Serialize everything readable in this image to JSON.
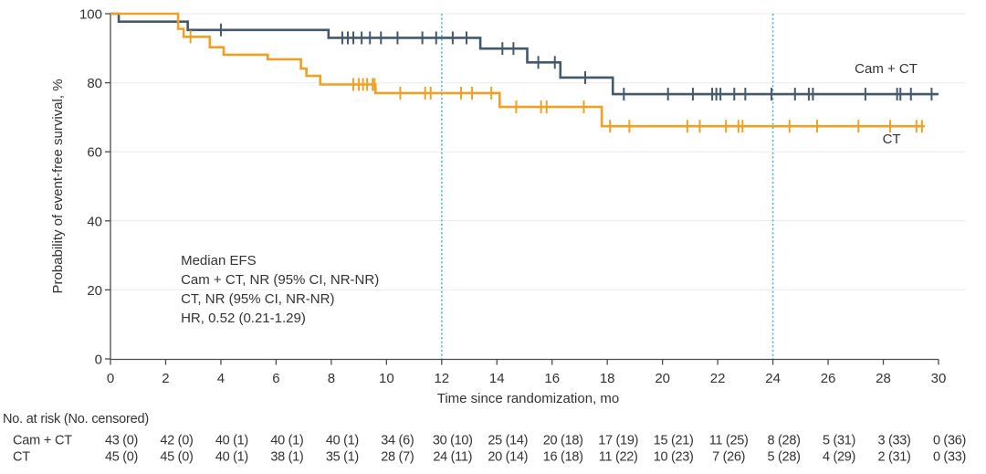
{
  "figure": {
    "background": "#ffffff",
    "text_color": "#333333",
    "axis_color": "#4c4c4c",
    "gridline_color": "#ebebeb"
  },
  "chart_data": {
    "type": "line",
    "subtype": "kaplan_meier_step",
    "title": "",
    "xlabel": "Time since randomization, mo",
    "ylabel": "Probability of event-free survival, %",
    "xlim": [
      0,
      30
    ],
    "ylim": [
      0,
      100
    ],
    "xticks": [
      0,
      2,
      4,
      6,
      8,
      10,
      12,
      14,
      16,
      18,
      20,
      22,
      24,
      26,
      28,
      30
    ],
    "yticks": [
      0,
      20,
      40,
      60,
      80,
      100
    ],
    "grid": "horizontal",
    "legend_position": "inline-right",
    "reference_lines": {
      "x_values": [
        12,
        24
      ],
      "style": "dotted",
      "color": "#3fb8e8"
    },
    "annotation": {
      "at_xy": [
        2.55,
        27.2
      ],
      "line_height_px": 21,
      "lines": [
        "Median EFS",
        "Cam + CT, NR (95% CI, NR-NR)",
        "CT, NR (95% CI, NR-NR)",
        "HR, 0.52 (0.21-1.29)"
      ]
    },
    "series": [
      {
        "name": "Cam + CT",
        "color": "#44596b",
        "label_at_xy": [
          28.1,
          82.8
        ],
        "end_x": 30.0,
        "steps": [
          [
            0,
            100
          ],
          [
            0.3,
            97.7
          ],
          [
            2.8,
            95.3
          ],
          [
            7.9,
            93.0
          ],
          [
            13.4,
            89.9
          ],
          [
            15.1,
            85.9
          ],
          [
            16.3,
            81.5
          ],
          [
            18.2,
            76.7
          ]
        ],
        "censor_marks": [
          [
            4.0,
            95.3
          ],
          [
            8.4,
            93.0
          ],
          [
            8.6,
            93.0
          ],
          [
            8.8,
            93.0
          ],
          [
            9.1,
            93.0
          ],
          [
            9.4,
            93.0
          ],
          [
            9.8,
            93.0
          ],
          [
            10.4,
            93.0
          ],
          [
            11.3,
            93.0
          ],
          [
            11.8,
            93.0
          ],
          [
            12.4,
            93.0
          ],
          [
            12.9,
            93.0
          ],
          [
            14.2,
            89.9
          ],
          [
            14.6,
            89.9
          ],
          [
            15.5,
            85.9
          ],
          [
            16.1,
            85.9
          ],
          [
            17.2,
            81.5
          ],
          [
            18.6,
            76.7
          ],
          [
            20.2,
            76.7
          ],
          [
            21.1,
            76.7
          ],
          [
            21.8,
            76.7
          ],
          [
            21.95,
            76.7
          ],
          [
            22.1,
            76.7
          ],
          [
            22.6,
            76.7
          ],
          [
            23.0,
            76.7
          ],
          [
            23.95,
            76.7
          ],
          [
            24.8,
            76.7
          ],
          [
            25.3,
            76.7
          ],
          [
            25.45,
            76.7
          ],
          [
            27.35,
            76.7
          ],
          [
            28.5,
            76.7
          ],
          [
            28.62,
            76.7
          ],
          [
            29.0,
            76.7
          ],
          [
            29.75,
            76.7
          ]
        ]
      },
      {
        "name": "CT",
        "color": "#efa125",
        "label_at_xy": [
          28.3,
          62.4
        ],
        "end_x": 29.5,
        "steps": [
          [
            0,
            100
          ],
          [
            2.45,
            95.6
          ],
          [
            2.65,
            93.3
          ],
          [
            3.6,
            90.3
          ],
          [
            4.1,
            88.1
          ],
          [
            5.7,
            86.8
          ],
          [
            6.9,
            84.1
          ],
          [
            7.1,
            82.0
          ],
          [
            7.6,
            79.5
          ],
          [
            9.6,
            77.0
          ],
          [
            14.1,
            73.0
          ],
          [
            17.8,
            67.4
          ]
        ],
        "censor_marks": [
          [
            2.9,
            93.3
          ],
          [
            8.8,
            79.5
          ],
          [
            9.0,
            79.5
          ],
          [
            9.15,
            79.5
          ],
          [
            9.3,
            79.5
          ],
          [
            9.5,
            79.5
          ],
          [
            9.57,
            79.5
          ],
          [
            10.5,
            77.0
          ],
          [
            11.4,
            77.0
          ],
          [
            11.6,
            77.0
          ],
          [
            12.7,
            77.0
          ],
          [
            13.1,
            77.0
          ],
          [
            13.8,
            77.0
          ],
          [
            14.7,
            73.0
          ],
          [
            15.6,
            73.0
          ],
          [
            15.8,
            73.0
          ],
          [
            17.15,
            73.0
          ],
          [
            18.1,
            67.4
          ],
          [
            18.8,
            67.4
          ],
          [
            20.9,
            67.4
          ],
          [
            21.35,
            67.4
          ],
          [
            22.3,
            67.4
          ],
          [
            22.75,
            67.4
          ],
          [
            22.9,
            67.4
          ],
          [
            24.6,
            67.4
          ],
          [
            25.6,
            67.4
          ],
          [
            27.1,
            67.4
          ],
          [
            28.25,
            67.4
          ],
          [
            29.2,
            67.4
          ],
          [
            29.4,
            67.4
          ]
        ]
      }
    ]
  },
  "risk_table": {
    "header": "No. at risk (No. censored)",
    "times": [
      0,
      2,
      4,
      6,
      8,
      10,
      12,
      14,
      16,
      18,
      20,
      22,
      24,
      26,
      28,
      30
    ],
    "rows": [
      {
        "label": "Cam + CT",
        "values": [
          "43 (0)",
          "42 (0)",
          "40 (1)",
          "40 (1)",
          "40 (1)",
          "34 (6)",
          "30 (10)",
          "25 (14)",
          "20 (18)",
          "17 (19)",
          "15 (21)",
          "11 (25)",
          "8 (28)",
          "5 (31)",
          "3 (33)",
          "0 (36)"
        ]
      },
      {
        "label": "CT",
        "values": [
          "45 (0)",
          "45 (0)",
          "40 (1)",
          "38 (1)",
          "35 (1)",
          "28 (7)",
          "24 (11)",
          "20 (14)",
          "16 (18)",
          "11 (22)",
          "10 (23)",
          "7 (26)",
          "5 (28)",
          "4 (29)",
          "2 (31)",
          "0 (33)"
        ]
      }
    ]
  }
}
